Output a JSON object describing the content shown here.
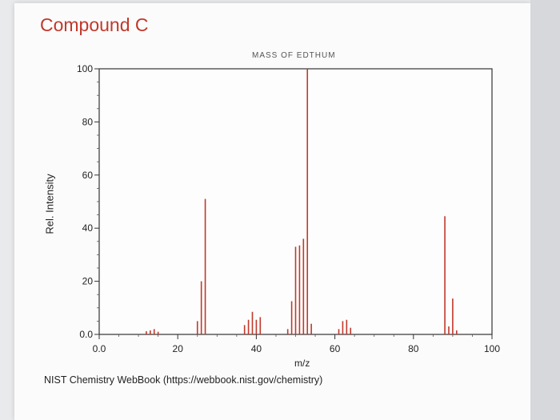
{
  "page": {
    "heading": "Compound C",
    "credit": "NIST Chemistry WebBook (https://webbook.nist.gov/chemistry)"
  },
  "chart_data": {
    "type": "bar",
    "title": "MASS OF EDTHUM",
    "xlabel": "m/z",
    "ylabel": "Rel. Intensity",
    "xlim": [
      0,
      100
    ],
    "ylim": [
      0,
      100
    ],
    "xticks": [
      0,
      20,
      40,
      60,
      80,
      100
    ],
    "xtick_labels": [
      "0.0",
      "20",
      "40",
      "60",
      "80",
      "100"
    ],
    "yticks": [
      0,
      20,
      40,
      60,
      80,
      100
    ],
    "ytick_labels": [
      "0.0",
      "20",
      "40",
      "60",
      "80",
      "100"
    ],
    "grid": false,
    "bar_color": "#c0392b",
    "peaks": [
      {
        "mz": 12,
        "intensity": 1.2
      },
      {
        "mz": 13,
        "intensity": 1.5
      },
      {
        "mz": 14,
        "intensity": 2.0
      },
      {
        "mz": 15,
        "intensity": 1.0
      },
      {
        "mz": 25,
        "intensity": 5.0
      },
      {
        "mz": 26,
        "intensity": 20.0
      },
      {
        "mz": 27,
        "intensity": 51.0
      },
      {
        "mz": 37,
        "intensity": 3.5
      },
      {
        "mz": 38,
        "intensity": 5.5
      },
      {
        "mz": 39,
        "intensity": 8.5
      },
      {
        "mz": 40,
        "intensity": 5.5
      },
      {
        "mz": 41,
        "intensity": 6.5
      },
      {
        "mz": 48,
        "intensity": 2.0
      },
      {
        "mz": 49,
        "intensity": 12.5
      },
      {
        "mz": 50,
        "intensity": 33.0
      },
      {
        "mz": 51,
        "intensity": 33.5
      },
      {
        "mz": 52,
        "intensity": 36.0
      },
      {
        "mz": 53,
        "intensity": 100.0
      },
      {
        "mz": 54,
        "intensity": 4.0
      },
      {
        "mz": 61,
        "intensity": 2.0
      },
      {
        "mz": 62,
        "intensity": 5.0
      },
      {
        "mz": 63,
        "intensity": 5.5
      },
      {
        "mz": 64,
        "intensity": 2.5
      },
      {
        "mz": 88,
        "intensity": 44.5
      },
      {
        "mz": 89,
        "intensity": 3.0
      },
      {
        "mz": 90,
        "intensity": 13.5
      },
      {
        "mz": 91,
        "intensity": 1.5
      }
    ]
  }
}
